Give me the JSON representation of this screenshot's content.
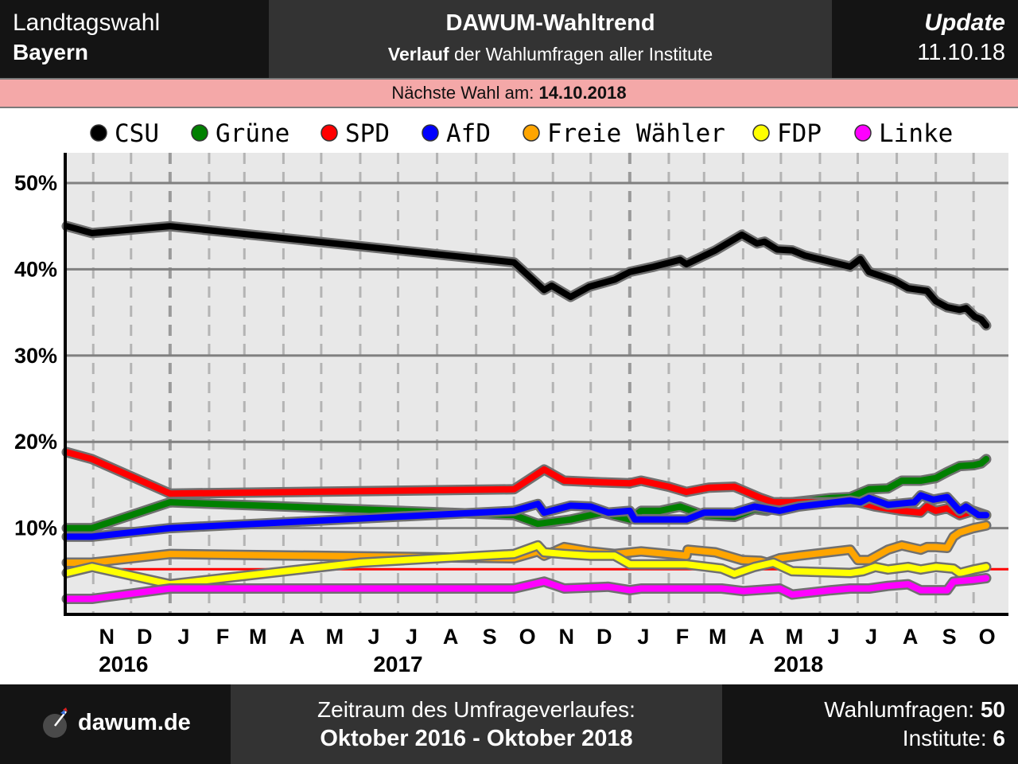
{
  "header": {
    "left_line1": "Landtagswahl",
    "left_line2": "Bayern",
    "title": "DAWUM-Wahltrend",
    "subtitle_bold": "Verlauf",
    "subtitle_rest": " der Wahlumfragen aller Institute",
    "update_label": "Update",
    "update_date": "11.10.18"
  },
  "next_election": {
    "label": "Nächste Wahl am: ",
    "date": "14.10.2018"
  },
  "footer": {
    "logo_text": "dawum.de",
    "period_label": "Zeitraum des Umfrageverlaufes:",
    "period_value": "Oktober 2016 - Oktober 2018",
    "polls_label": "Wahlumfragen: ",
    "polls_count": "50",
    "institutes_label": "Institute: ",
    "institutes_count": "6"
  },
  "chart_data": {
    "type": "line",
    "x_range": [
      "2016-10-11",
      "2018-10-11"
    ],
    "ylim": [
      0,
      53
    ],
    "yticks": [
      10,
      20,
      30,
      40,
      50
    ],
    "ytick_labels": [
      "10%",
      "20%",
      "30%",
      "40%",
      "50%"
    ],
    "threshold": 5,
    "grid": true,
    "legend_position": "top",
    "month_ticks": [
      {
        "date": "2016-11-01",
        "label": "N"
      },
      {
        "date": "2016-12-01",
        "label": "D"
      },
      {
        "date": "2017-01-01",
        "label": "J"
      },
      {
        "date": "2017-02-01",
        "label": "F"
      },
      {
        "date": "2017-03-01",
        "label": "M"
      },
      {
        "date": "2017-04-01",
        "label": "A"
      },
      {
        "date": "2017-05-01",
        "label": "M"
      },
      {
        "date": "2017-06-01",
        "label": "J"
      },
      {
        "date": "2017-07-01",
        "label": "J"
      },
      {
        "date": "2017-08-01",
        "label": "A"
      },
      {
        "date": "2017-09-01",
        "label": "S"
      },
      {
        "date": "2017-10-01",
        "label": "O"
      },
      {
        "date": "2017-11-01",
        "label": "N"
      },
      {
        "date": "2017-12-01",
        "label": "D"
      },
      {
        "date": "2018-01-01",
        "label": "J"
      },
      {
        "date": "2018-02-01",
        "label": "F"
      },
      {
        "date": "2018-03-01",
        "label": "M"
      },
      {
        "date": "2018-04-01",
        "label": "A"
      },
      {
        "date": "2018-05-01",
        "label": "M"
      },
      {
        "date": "2018-06-01",
        "label": "J"
      },
      {
        "date": "2018-07-01",
        "label": "J"
      },
      {
        "date": "2018-08-01",
        "label": "A"
      },
      {
        "date": "2018-09-01",
        "label": "S"
      },
      {
        "date": "2018-10-01",
        "label": "O"
      }
    ],
    "year_labels": [
      {
        "date": "2016-11-25",
        "label": "2016"
      },
      {
        "date": "2017-07-01",
        "label": "2017"
      },
      {
        "date": "2018-05-15",
        "label": "2018"
      }
    ],
    "year_separators": [
      "2017-01-01",
      "2018-01-01"
    ],
    "series": [
      {
        "name": "CSU",
        "color": "#000000",
        "points": [
          [
            "2016-10-11",
            45.0
          ],
          [
            "2016-10-31",
            44.2
          ],
          [
            "2017-01-01",
            45.0
          ],
          [
            "2017-10-01",
            40.8
          ],
          [
            "2017-10-25",
            37.6
          ],
          [
            "2017-10-31",
            38.1
          ],
          [
            "2017-11-15",
            36.8
          ],
          [
            "2017-11-30",
            38.0
          ],
          [
            "2017-12-20",
            38.8
          ],
          [
            "2018-01-01",
            39.7
          ],
          [
            "2018-01-20",
            40.3
          ],
          [
            "2018-02-10",
            41.1
          ],
          [
            "2018-02-15",
            40.6
          ],
          [
            "2018-03-10",
            42.2
          ],
          [
            "2018-03-31",
            44.0
          ],
          [
            "2018-04-12",
            43.0
          ],
          [
            "2018-04-18",
            43.2
          ],
          [
            "2018-04-28",
            42.3
          ],
          [
            "2018-05-10",
            42.2
          ],
          [
            "2018-05-20",
            41.6
          ],
          [
            "2018-06-25",
            40.3
          ],
          [
            "2018-07-03",
            41.2
          ],
          [
            "2018-07-10",
            39.7
          ],
          [
            "2018-07-30",
            38.7
          ],
          [
            "2018-08-10",
            37.8
          ],
          [
            "2018-08-25",
            37.5
          ],
          [
            "2018-09-01",
            36.3
          ],
          [
            "2018-09-10",
            35.6
          ],
          [
            "2018-09-20",
            35.3
          ],
          [
            "2018-09-25",
            35.5
          ],
          [
            "2018-10-02",
            34.5
          ],
          [
            "2018-10-07",
            34.2
          ],
          [
            "2018-10-11",
            33.5
          ]
        ]
      },
      {
        "name": "Grüne",
        "color": "#008000",
        "points": [
          [
            "2016-10-11",
            10.0
          ],
          [
            "2016-10-31",
            10.0
          ],
          [
            "2017-01-01",
            13.0
          ],
          [
            "2017-10-01",
            11.5
          ],
          [
            "2017-10-20",
            10.5
          ],
          [
            "2017-11-15",
            11.0
          ],
          [
            "2017-12-10",
            11.8
          ],
          [
            "2018-01-01",
            11.0
          ],
          [
            "2018-01-10",
            12.0
          ],
          [
            "2018-01-25",
            12.0
          ],
          [
            "2018-02-10",
            12.5
          ],
          [
            "2018-03-01",
            11.5
          ],
          [
            "2018-03-25",
            11.3
          ],
          [
            "2018-04-10",
            12.2
          ],
          [
            "2018-04-20",
            12.0
          ],
          [
            "2018-05-10",
            13.0
          ],
          [
            "2018-06-10",
            13.5
          ],
          [
            "2018-06-25",
            13.6
          ],
          [
            "2018-07-10",
            14.5
          ],
          [
            "2018-07-25",
            14.6
          ],
          [
            "2018-08-05",
            15.5
          ],
          [
            "2018-08-20",
            15.5
          ],
          [
            "2018-09-01",
            15.8
          ],
          [
            "2018-09-10",
            16.5
          ],
          [
            "2018-09-20",
            17.2
          ],
          [
            "2018-10-01",
            17.3
          ],
          [
            "2018-10-07",
            17.5
          ],
          [
            "2018-10-11",
            18.0
          ]
        ]
      },
      {
        "name": "SPD",
        "color": "#ff0000",
        "points": [
          [
            "2016-10-11",
            18.8
          ],
          [
            "2016-10-31",
            18.0
          ],
          [
            "2017-01-01",
            14.0
          ],
          [
            "2017-10-01",
            14.5
          ],
          [
            "2017-10-25",
            16.8
          ],
          [
            "2017-11-10",
            15.5
          ],
          [
            "2017-12-10",
            15.3
          ],
          [
            "2018-01-01",
            15.2
          ],
          [
            "2018-01-10",
            15.5
          ],
          [
            "2018-02-01",
            14.8
          ],
          [
            "2018-02-15",
            14.2
          ],
          [
            "2018-03-05",
            14.7
          ],
          [
            "2018-03-25",
            14.8
          ],
          [
            "2018-04-15",
            13.5
          ],
          [
            "2018-04-25",
            13.0
          ],
          [
            "2018-05-10",
            13.0
          ],
          [
            "2018-06-20",
            13.0
          ],
          [
            "2018-07-01",
            13.0
          ],
          [
            "2018-07-15",
            12.5
          ],
          [
            "2018-08-05",
            12.0
          ],
          [
            "2018-08-20",
            11.8
          ],
          [
            "2018-08-25",
            12.5
          ],
          [
            "2018-09-01",
            12.0
          ],
          [
            "2018-09-10",
            12.3
          ],
          [
            "2018-09-20",
            11.5
          ],
          [
            "2018-10-01",
            12.0
          ],
          [
            "2018-10-11",
            11.5
          ]
        ]
      },
      {
        "name": "AfD",
        "color": "#0000ff",
        "points": [
          [
            "2016-10-11",
            9.0
          ],
          [
            "2016-10-31",
            9.0
          ],
          [
            "2017-01-01",
            10.0
          ],
          [
            "2017-10-01",
            12.0
          ],
          [
            "2017-10-20",
            12.8
          ],
          [
            "2017-10-25",
            11.8
          ],
          [
            "2017-11-15",
            12.6
          ],
          [
            "2017-12-01",
            12.5
          ],
          [
            "2017-12-15",
            11.8
          ],
          [
            "2018-01-01",
            12.0
          ],
          [
            "2018-01-05",
            11.0
          ],
          [
            "2018-02-15",
            11.0
          ],
          [
            "2018-03-01",
            11.8
          ],
          [
            "2018-03-25",
            11.8
          ],
          [
            "2018-04-10",
            12.5
          ],
          [
            "2018-04-30",
            12.0
          ],
          [
            "2018-05-15",
            12.5
          ],
          [
            "2018-06-25",
            13.2
          ],
          [
            "2018-07-03",
            13.0
          ],
          [
            "2018-07-10",
            13.5
          ],
          [
            "2018-07-25",
            12.7
          ],
          [
            "2018-08-15",
            13.0
          ],
          [
            "2018-08-20",
            13.8
          ],
          [
            "2018-08-30",
            13.3
          ],
          [
            "2018-09-10",
            13.6
          ],
          [
            "2018-09-20",
            12.0
          ],
          [
            "2018-09-25",
            12.5
          ],
          [
            "2018-10-05",
            11.5
          ],
          [
            "2018-10-11",
            11.5
          ]
        ]
      },
      {
        "name": "Freie Wähler",
        "color": "#ffa500",
        "points": [
          [
            "2016-10-11",
            6.0
          ],
          [
            "2016-10-31",
            6.0
          ],
          [
            "2017-01-01",
            7.0
          ],
          [
            "2017-10-01",
            6.5
          ],
          [
            "2017-10-20",
            7.3
          ],
          [
            "2017-10-25",
            6.8
          ],
          [
            "2017-11-10",
            7.8
          ],
          [
            "2017-12-01",
            7.3
          ],
          [
            "2017-12-20",
            7.0
          ],
          [
            "2018-01-10",
            7.3
          ],
          [
            "2018-02-15",
            6.8
          ],
          [
            "2018-02-16",
            7.5
          ],
          [
            "2018-03-10",
            7.2
          ],
          [
            "2018-03-31",
            6.3
          ],
          [
            "2018-04-15",
            6.2
          ],
          [
            "2018-04-20",
            6.0
          ],
          [
            "2018-04-30",
            6.5
          ],
          [
            "2018-05-15",
            6.8
          ],
          [
            "2018-06-25",
            7.5
          ],
          [
            "2018-07-01",
            6.3
          ],
          [
            "2018-07-10",
            6.3
          ],
          [
            "2018-07-25",
            7.5
          ],
          [
            "2018-08-05",
            8.0
          ],
          [
            "2018-08-20",
            7.5
          ],
          [
            "2018-08-25",
            7.8
          ],
          [
            "2018-09-01",
            7.8
          ],
          [
            "2018-09-10",
            7.7
          ],
          [
            "2018-09-15",
            9.0
          ],
          [
            "2018-09-20",
            9.5
          ],
          [
            "2018-10-01",
            10.0
          ],
          [
            "2018-10-11",
            10.3
          ]
        ]
      },
      {
        "name": "FDP",
        "color": "#ffff00",
        "points": [
          [
            "2016-10-11",
            4.8
          ],
          [
            "2016-10-31",
            5.5
          ],
          [
            "2017-01-01",
            3.5
          ],
          [
            "2017-06-01",
            6.0
          ],
          [
            "2017-10-01",
            7.0
          ],
          [
            "2017-10-20",
            8.0
          ],
          [
            "2017-10-25",
            7.2
          ],
          [
            "2017-11-10",
            7.0
          ],
          [
            "2017-12-01",
            6.8
          ],
          [
            "2017-12-20",
            6.8
          ],
          [
            "2018-01-01",
            5.8
          ],
          [
            "2018-02-15",
            5.8
          ],
          [
            "2018-03-15",
            5.3
          ],
          [
            "2018-03-25",
            4.7
          ],
          [
            "2018-04-10",
            5.5
          ],
          [
            "2018-04-25",
            6.0
          ],
          [
            "2018-05-10",
            5.0
          ],
          [
            "2018-06-25",
            4.8
          ],
          [
            "2018-07-05",
            5.0
          ],
          [
            "2018-07-15",
            5.5
          ],
          [
            "2018-07-25",
            5.2
          ],
          [
            "2018-08-10",
            5.5
          ],
          [
            "2018-08-20",
            5.2
          ],
          [
            "2018-09-01",
            5.5
          ],
          [
            "2018-09-15",
            5.3
          ],
          [
            "2018-09-20",
            4.8
          ],
          [
            "2018-10-01",
            5.2
          ],
          [
            "2018-10-11",
            5.5
          ]
        ]
      },
      {
        "name": "Linke",
        "color": "#ff00ff",
        "points": [
          [
            "2016-10-11",
            1.8
          ],
          [
            "2016-10-31",
            1.8
          ],
          [
            "2017-01-01",
            3.0
          ],
          [
            "2017-10-01",
            3.0
          ],
          [
            "2017-10-25",
            3.8
          ],
          [
            "2017-11-10",
            3.0
          ],
          [
            "2017-12-15",
            3.2
          ],
          [
            "2018-01-01",
            2.8
          ],
          [
            "2018-01-10",
            3.0
          ],
          [
            "2018-02-10",
            3.0
          ],
          [
            "2018-03-15",
            3.0
          ],
          [
            "2018-04-01",
            2.7
          ],
          [
            "2018-04-30",
            3.0
          ],
          [
            "2018-05-10",
            2.3
          ],
          [
            "2018-06-10",
            2.8
          ],
          [
            "2018-06-25",
            3.0
          ],
          [
            "2018-07-10",
            3.0
          ],
          [
            "2018-07-25",
            3.3
          ],
          [
            "2018-08-10",
            3.5
          ],
          [
            "2018-08-20",
            2.8
          ],
          [
            "2018-09-01",
            2.8
          ],
          [
            "2018-09-10",
            2.8
          ],
          [
            "2018-09-15",
            3.8
          ],
          [
            "2018-10-01",
            4.0
          ],
          [
            "2018-10-11",
            4.2
          ]
        ]
      }
    ]
  }
}
